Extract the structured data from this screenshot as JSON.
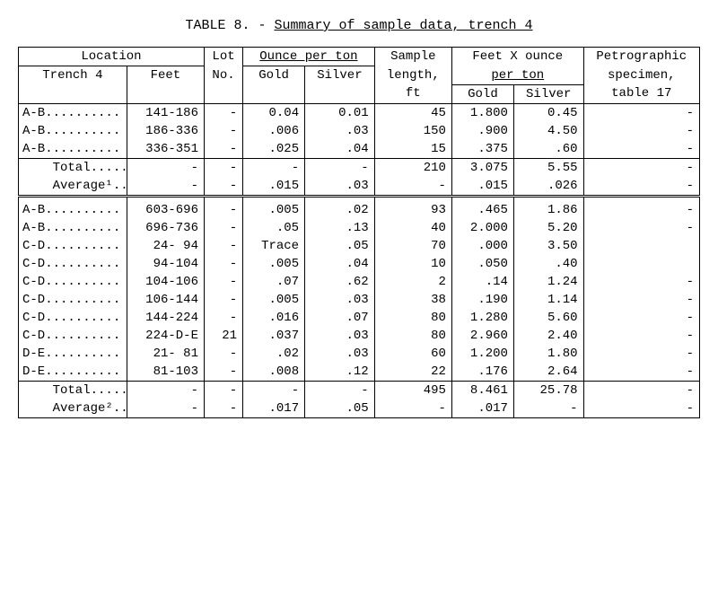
{
  "title": {
    "prefix": "TABLE 8. - ",
    "main": "Summary of sample data, trench 4"
  },
  "headers": {
    "location": "Location",
    "location_u": "n",
    "lot": "Lot",
    "oz_per_ton": "Ounce per ton",
    "sample": "Sample",
    "ft_x_oz": "Feet X ounce",
    "petro": "Petrographic",
    "trench4": "Trench 4",
    "feet": "Feet",
    "no": "No.",
    "gold": "Gold",
    "silver": "Silver",
    "length": "length,",
    "per_ton": "per ton",
    "specimen": "specimen,",
    "ft": "ft",
    "gold2": "Gold",
    "silver2": "Silver",
    "table17": "table 17"
  },
  "rows": [
    [
      "A-B..........",
      "141-186",
      "-",
      "0.04",
      "0.01",
      "45",
      "1.800",
      "0.45",
      "-"
    ],
    [
      "A-B..........",
      "186-336",
      "-",
      ".006",
      ".03",
      "150",
      ".900",
      "4.50",
      "-"
    ],
    [
      "A-B..........",
      "336-351",
      "-",
      ".025",
      ".04",
      "15",
      ".375",
      ".60",
      "-"
    ],
    [
      "    Total.....",
      "-",
      "-",
      "-",
      "-",
      "210",
      "3.075",
      "5.55",
      "-"
    ],
    [
      "    Average¹..",
      "-",
      "-",
      ".015",
      ".03",
      "-",
      ".015",
      ".026",
      "-"
    ]
  ],
  "rows2": [
    [
      "A-B..........",
      "603-696",
      "-",
      ".005",
      ".02",
      "93",
      ".465",
      "1.86",
      "-"
    ],
    [
      "A-B..........",
      "696-736",
      "-",
      ".05",
      ".13",
      "40",
      "2.000",
      "5.20",
      "-"
    ],
    [
      "C-D..........",
      "24- 94",
      "-",
      "Trace",
      ".05",
      "70",
      ".000",
      "3.50",
      ""
    ],
    [
      "C-D..........",
      "94-104",
      "-",
      ".005",
      ".04",
      "10",
      ".050",
      ".40",
      ""
    ],
    [
      "C-D..........",
      "104-106",
      "-",
      ".07",
      ".62",
      "2",
      ".14",
      "1.24",
      "-"
    ],
    [
      "C-D..........",
      "106-144",
      "-",
      ".005",
      ".03",
      "38",
      ".190",
      "1.14",
      "-"
    ],
    [
      "C-D..........",
      "144-224",
      "-",
      ".016",
      ".07",
      "80",
      "1.280",
      "5.60",
      "-"
    ],
    [
      "C-D..........",
      "224-D-E",
      "21",
      ".037",
      ".03",
      "80",
      "2.960",
      "2.40",
      "-"
    ],
    [
      "D-E..........",
      "21- 81",
      "-",
      ".02",
      ".03",
      "60",
      "1.200",
      "1.80",
      "-"
    ],
    [
      "D-E..........",
      "81-103",
      "-",
      ".008",
      ".12",
      "22",
      ".176",
      "2.64",
      "-"
    ],
    [
      "    Total.....",
      "-",
      "-",
      "-",
      "-",
      "495",
      "8.461",
      "25.78",
      "-"
    ],
    [
      "    Average²..",
      "-",
      "-",
      ".017",
      ".05",
      "-",
      ".017",
      "-",
      "-"
    ]
  ]
}
